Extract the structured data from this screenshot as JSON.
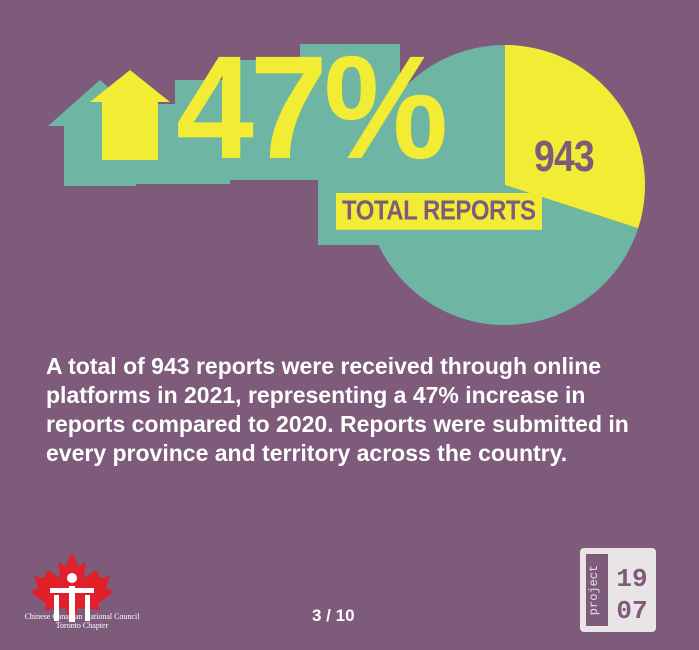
{
  "headline": {
    "percent": "47%",
    "total_label": "TOTAL REPORTS"
  },
  "chart_data": {
    "type": "pie",
    "values": [
      943
    ],
    "data_labels": [
      "943"
    ],
    "slices": [
      {
        "fraction": 0.3,
        "color": "#f3ec34"
      },
      {
        "fraction": 0.7,
        "color": "#6fb5a4"
      }
    ]
  },
  "body_text": "A total of 943 reports were received through online platforms in 2021, representing a 47% increase in reports compared to 2020. Reports were submitted in every province and territory across the country.",
  "footer": {
    "page": "3 / 10",
    "org_line1": "Chinese Canadian National Council",
    "org_line2": "Toronto Chapter",
    "project_word": "project",
    "project_num_top": "19",
    "project_num_bottom": "07"
  },
  "colors": {
    "background": "#7e5b7a",
    "yellow": "#f3ec34",
    "teal": "#6fb5a4",
    "logo_red": "#e0202a"
  }
}
